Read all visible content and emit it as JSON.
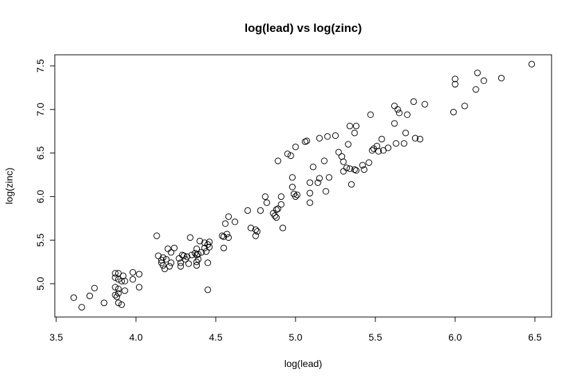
{
  "chart_data": {
    "type": "scatter",
    "title": "log(lead) vs log(zinc)",
    "xlabel": "log(lead)",
    "ylabel": "log(zinc)",
    "xlim": [
      3.5,
      6.6
    ],
    "ylim": [
      4.7,
      7.6
    ],
    "xticks": [
      "3.5",
      "4.0",
      "4.5",
      "5.0",
      "5.5",
      "6.0",
      "6.5"
    ],
    "yticks": [
      "5.0",
      "5.5",
      "6.0",
      "6.5",
      "7.0",
      "7.5"
    ],
    "grid": false,
    "legend": "none",
    "marker": "open-circle",
    "color": "#000000",
    "points": [
      [
        3.61,
        4.84
      ],
      [
        3.66,
        4.73
      ],
      [
        3.71,
        4.86
      ],
      [
        3.74,
        4.95
      ],
      [
        3.8,
        4.78
      ],
      [
        3.87,
        5.12
      ],
      [
        3.87,
        5.07
      ],
      [
        3.87,
        4.96
      ],
      [
        3.87,
        4.87
      ],
      [
        3.88,
        4.85
      ],
      [
        3.89,
        5.12
      ],
      [
        3.89,
        5.05
      ],
      [
        3.89,
        4.94
      ],
      [
        3.89,
        4.89
      ],
      [
        3.89,
        4.78
      ],
      [
        3.91,
        5.03
      ],
      [
        3.91,
        4.76
      ],
      [
        3.92,
        5.09
      ],
      [
        3.93,
        5.03
      ],
      [
        3.93,
        4.92
      ],
      [
        3.98,
        5.13
      ],
      [
        3.98,
        5.05
      ],
      [
        4.02,
        5.11
      ],
      [
        4.02,
        4.96
      ],
      [
        4.13,
        5.55
      ],
      [
        4.14,
        5.32
      ],
      [
        4.16,
        5.27
      ],
      [
        4.16,
        5.24
      ],
      [
        4.17,
        5.3
      ],
      [
        4.17,
        5.21
      ],
      [
        4.18,
        5.17
      ],
      [
        4.19,
        5.28
      ],
      [
        4.2,
        5.4
      ],
      [
        4.21,
        5.2
      ],
      [
        4.22,
        5.36
      ],
      [
        4.22,
        5.24
      ],
      [
        4.24,
        5.41
      ],
      [
        4.27,
        5.29
      ],
      [
        4.28,
        5.24
      ],
      [
        4.28,
        5.2
      ],
      [
        4.29,
        5.33
      ],
      [
        4.3,
        5.32
      ],
      [
        4.31,
        5.28
      ],
      [
        4.32,
        5.31
      ],
      [
        4.33,
        5.23
      ],
      [
        4.34,
        5.53
      ],
      [
        4.35,
        5.33
      ],
      [
        4.37,
        5.35
      ],
      [
        4.38,
        5.4
      ],
      [
        4.38,
        5.33
      ],
      [
        4.38,
        5.25
      ],
      [
        4.38,
        5.21
      ],
      [
        4.39,
        5.34
      ],
      [
        4.39,
        5.28
      ],
      [
        4.4,
        5.49
      ],
      [
        4.41,
        5.36
      ],
      [
        4.43,
        5.47
      ],
      [
        4.43,
        5.41
      ],
      [
        4.44,
        5.37
      ],
      [
        4.45,
        5.45
      ],
      [
        4.45,
        4.93
      ],
      [
        4.45,
        5.24
      ],
      [
        4.46,
        5.48
      ],
      [
        4.46,
        5.42
      ],
      [
        4.54,
        5.55
      ],
      [
        4.55,
        5.41
      ],
      [
        4.55,
        5.54
      ],
      [
        4.56,
        5.69
      ],
      [
        4.57,
        5.57
      ],
      [
        4.58,
        5.53
      ],
      [
        4.58,
        5.77
      ],
      [
        4.62,
        5.71
      ],
      [
        4.7,
        5.84
      ],
      [
        4.72,
        5.64
      ],
      [
        4.75,
        5.62
      ],
      [
        4.75,
        5.55
      ],
      [
        4.76,
        5.6
      ],
      [
        4.78,
        5.84
      ],
      [
        4.81,
        6.0
      ],
      [
        4.82,
        5.93
      ],
      [
        4.86,
        5.81
      ],
      [
        4.87,
        5.78
      ],
      [
        4.88,
        5.76
      ],
      [
        4.88,
        5.85
      ],
      [
        4.89,
        6.41
      ],
      [
        4.89,
        5.86
      ],
      [
        4.91,
        5.91
      ],
      [
        4.91,
        6.0
      ],
      [
        4.92,
        5.64
      ],
      [
        4.95,
        6.49
      ],
      [
        4.97,
        6.47
      ],
      [
        4.98,
        6.22
      ],
      [
        4.98,
        6.11
      ],
      [
        4.99,
        6.03
      ],
      [
        5.0,
        6.57
      ],
      [
        5.0,
        6.0
      ],
      [
        5.01,
        6.02
      ],
      [
        5.06,
        6.63
      ],
      [
        5.07,
        6.64
      ],
      [
        5.09,
        6.16
      ],
      [
        5.09,
        6.04
      ],
      [
        5.09,
        5.93
      ],
      [
        5.11,
        6.34
      ],
      [
        5.14,
        6.16
      ],
      [
        5.15,
        6.67
      ],
      [
        5.15,
        6.21
      ],
      [
        5.18,
        6.41
      ],
      [
        5.19,
        6.06
      ],
      [
        5.2,
        6.69
      ],
      [
        5.21,
        6.22
      ],
      [
        5.25,
        6.7
      ],
      [
        5.27,
        6.51
      ],
      [
        5.29,
        6.46
      ],
      [
        5.3,
        6.4
      ],
      [
        5.3,
        6.29
      ],
      [
        5.32,
        6.33
      ],
      [
        5.33,
        6.6
      ],
      [
        5.34,
        6.32
      ],
      [
        5.34,
        6.81
      ],
      [
        5.35,
        6.14
      ],
      [
        5.37,
        6.31
      ],
      [
        5.37,
        6.73
      ],
      [
        5.38,
        6.81
      ],
      [
        5.38,
        6.3
      ],
      [
        5.42,
        6.36
      ],
      [
        5.43,
        6.31
      ],
      [
        5.46,
        6.39
      ],
      [
        5.47,
        6.94
      ],
      [
        5.48,
        6.53
      ],
      [
        5.49,
        6.55
      ],
      [
        5.51,
        6.58
      ],
      [
        5.52,
        6.52
      ],
      [
        5.54,
        6.66
      ],
      [
        5.55,
        6.53
      ],
      [
        5.58,
        6.56
      ],
      [
        5.62,
        6.84
      ],
      [
        5.62,
        7.04
      ],
      [
        5.63,
        6.61
      ],
      [
        5.64,
        7.0
      ],
      [
        5.65,
        6.96
      ],
      [
        5.68,
        6.61
      ],
      [
        5.69,
        6.73
      ],
      [
        5.7,
        6.94
      ],
      [
        5.74,
        7.09
      ],
      [
        5.75,
        6.67
      ],
      [
        5.78,
        6.66
      ],
      [
        5.81,
        7.06
      ],
      [
        5.99,
        6.97
      ],
      [
        6.0,
        7.35
      ],
      [
        6.0,
        7.29
      ],
      [
        6.06,
        7.04
      ],
      [
        6.13,
        7.23
      ],
      [
        6.14,
        7.42
      ],
      [
        6.18,
        7.33
      ],
      [
        6.29,
        7.36
      ],
      [
        6.48,
        7.52
      ]
    ]
  }
}
